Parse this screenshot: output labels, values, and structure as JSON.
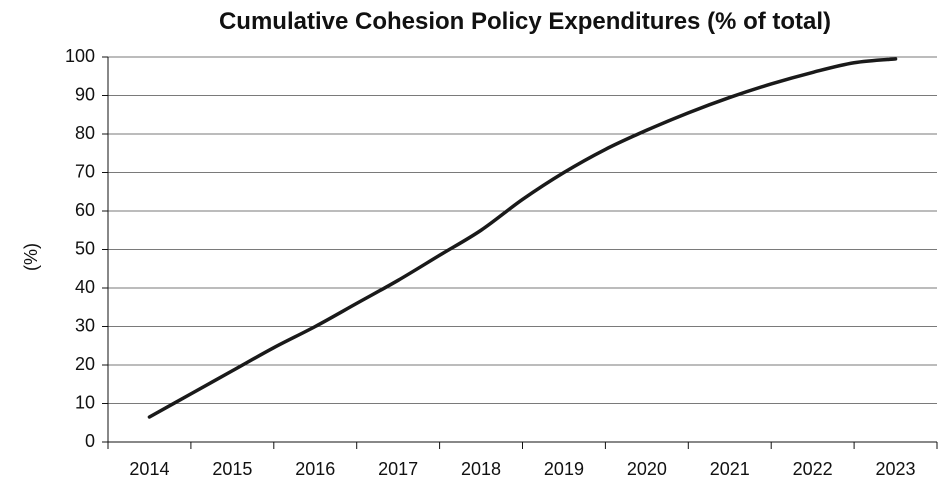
{
  "chart_data": {
    "type": "line",
    "title": "Cumulative Cohesion Policy Expenditures (% of total)",
    "xlabel": "",
    "ylabel": "(%)",
    "categories": [
      "2014",
      "2015",
      "2016",
      "2017",
      "2018",
      "2019",
      "2020",
      "2021",
      "2022",
      "2023"
    ],
    "x": [
      2014,
      2014.5,
      2015,
      2015.5,
      2016,
      2016.5,
      2017,
      2017.5,
      2018,
      2018.5,
      2019,
      2019.5,
      2020,
      2020.5,
      2021,
      2021.5,
      2022,
      2022.5,
      2023
    ],
    "values": [
      6.5,
      12.5,
      18.5,
      24.5,
      30,
      36,
      42,
      48.5,
      55,
      63,
      70,
      76,
      81,
      85.5,
      89.5,
      93,
      96,
      98.5,
      99.5
    ],
    "ylim": [
      0,
      100
    ],
    "yticks": [
      "0",
      "10",
      "20",
      "30",
      "40",
      "50",
      "60",
      "70",
      "80",
      "90",
      "100"
    ],
    "grid": true,
    "line_color": "#1a1a1a",
    "grid_color": "#7a7a7a"
  }
}
